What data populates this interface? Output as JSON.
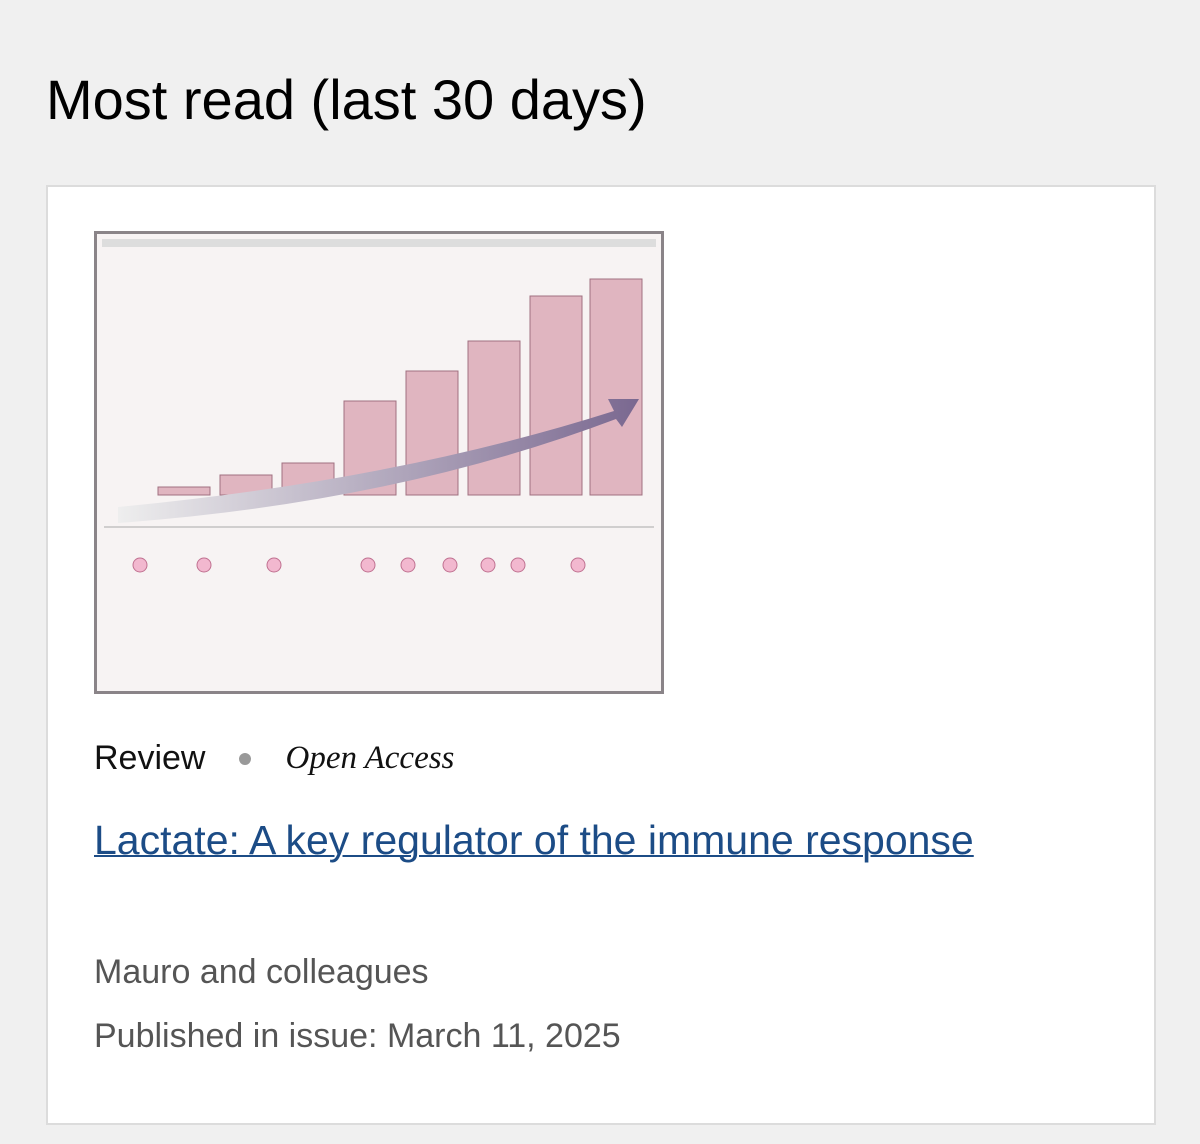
{
  "header": {
    "title": "Most read (last 30 days)"
  },
  "article": {
    "type": "Review",
    "access": "Open Access",
    "title": "Lactate: A key regulator of the immune response",
    "authors": "Mauro and colleagues",
    "published": "Published in issue: March 11, 2025"
  }
}
